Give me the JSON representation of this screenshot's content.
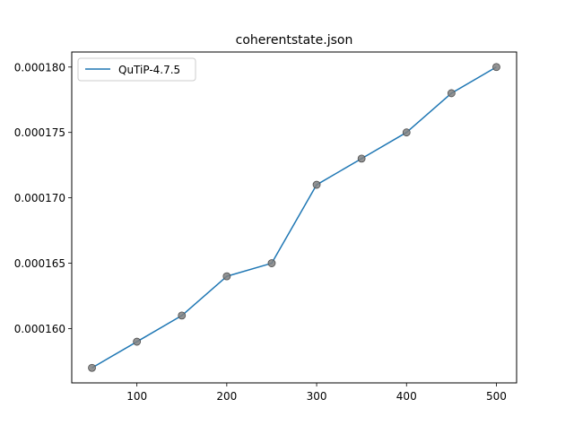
{
  "chart_data": {
    "type": "line",
    "title": "coherentstate.json",
    "xlabel": "",
    "ylabel": "",
    "x": [
      50,
      100,
      150,
      200,
      250,
      300,
      350,
      400,
      450,
      500
    ],
    "series": [
      {
        "name": "QuTiP-4.7.5",
        "values": [
          0.000157,
          0.000159,
          0.000161,
          0.000164,
          0.000165,
          0.000171,
          0.000173,
          0.000175,
          0.000178,
          0.00018
        ],
        "line_color": "#1f77b4",
        "marker_color": "#808080"
      }
    ],
    "xticks": [
      100,
      200,
      300,
      400,
      500
    ],
    "xtick_labels": [
      "100",
      "200",
      "300",
      "400",
      "500"
    ],
    "yticks": [
      0.00016,
      0.000165,
      0.00017,
      0.000175,
      0.00018
    ],
    "ytick_labels": [
      "0.000160",
      "0.000165",
      "0.000170",
      "0.000175",
      "0.000180"
    ],
    "xlim": [
      27.5,
      522.5
    ],
    "ylim": [
      0.00015585,
      0.00018115
    ],
    "grid": false,
    "legend_position": "upper-left"
  }
}
